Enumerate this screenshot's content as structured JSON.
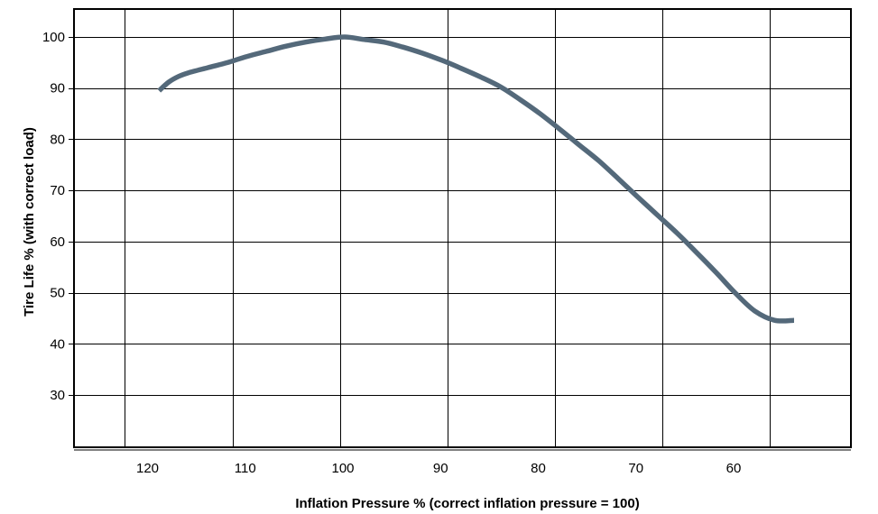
{
  "chart_data": {
    "type": "line",
    "title": "",
    "xlabel": "Inflation Pressure % (correct inflation pressure = 100)",
    "ylabel": "Tire Life % (with correct load)",
    "x_reversed": true,
    "xlim": [
      127,
      50
    ],
    "ylim": [
      20,
      105
    ],
    "xticks": [
      120,
      110,
      100,
      90,
      80,
      70,
      60
    ],
    "yticks": [
      100,
      90,
      80,
      70,
      60,
      50,
      40,
      30
    ],
    "x_gridlines": [
      122.5,
      111.5,
      100.5,
      89.5,
      78.5,
      67.5,
      56.5
    ],
    "grid": true,
    "line_color": "#54697a",
    "series": [
      {
        "x": [
          119,
          118,
          117,
          116,
          114,
          112,
          110,
          108,
          106,
          104,
          102,
          100,
          98,
          96,
          94,
          92,
          90,
          88,
          86,
          84,
          82,
          80,
          78,
          76,
          74,
          72,
          70,
          68,
          66,
          64,
          62,
          60,
          58,
          56,
          54
        ],
        "y": [
          89.5,
          91.2,
          92.3,
          93.0,
          94.0,
          95.0,
          96.2,
          97.2,
          98.2,
          99.0,
          99.6,
          100.0,
          99.5,
          99.0,
          98.0,
          96.8,
          95.4,
          93.8,
          92.1,
          90.2,
          87.7,
          85.0,
          82.0,
          78.9,
          75.8,
          72.3,
          68.7,
          65.2,
          61.7,
          57.9,
          54.0,
          49.9,
          46.4,
          44.6,
          44.6
        ]
      }
    ]
  }
}
